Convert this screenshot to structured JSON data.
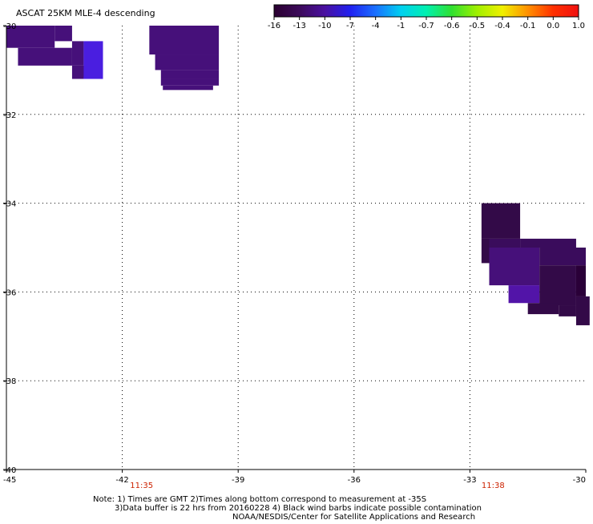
{
  "chart_data": {
    "type": "heatmap",
    "title": "ASCAT 25KM MLE-4 descending",
    "xlim": [
      -45,
      -30
    ],
    "ylim": [
      -40,
      -30
    ],
    "x_ticks": [
      -45,
      -42,
      -39,
      -36,
      -33,
      -30
    ],
    "y_ticks": [
      -30,
      -32,
      -34,
      -36,
      -38,
      -40
    ],
    "x_tick_labels": [
      "-45",
      "-42",
      "-39",
      "-36",
      "-33",
      "-30"
    ],
    "y_tick_labels": [
      "-30",
      "-32",
      "-34",
      "-36",
      "-38",
      "-40"
    ],
    "grid": true,
    "grid_style": "dotted",
    "colorbar": {
      "placement": "top-right",
      "labels": [
        "-16",
        "-13",
        "-10",
        "-7",
        "-4",
        "-1",
        "-0.7",
        "-0.6",
        "-0.5",
        "-0.4",
        "-0.1",
        "0.0",
        "1.0"
      ],
      "colors": [
        "#2a0030",
        "#3c0a5a",
        "#4a10a0",
        "#2020f0",
        "#1a70ff",
        "#00d0f0",
        "#00f0b0",
        "#30e030",
        "#a0f000",
        "#f0f000",
        "#ff9000",
        "#ff3000",
        "#f01010"
      ]
    },
    "time_labels": [
      {
        "text": "11:35",
        "lon": -41.5
      },
      {
        "text": "11:38",
        "lon": -32.4
      }
    ],
    "cells": [
      {
        "lon": [
          -45.0,
          -43.75
        ],
        "lat": [
          -30.0,
          -30.5
        ],
        "value": -12
      },
      {
        "lon": [
          -44.7,
          -43.3
        ],
        "lat": [
          -30.5,
          -30.9
        ],
        "value": -12
      },
      {
        "lon": [
          -43.75,
          -43.3
        ],
        "lat": [
          -30.0,
          -30.35
        ],
        "value": -12
      },
      {
        "lon": [
          -43.3,
          -43.0
        ],
        "lat": [
          -30.35,
          -30.9
        ],
        "value": -12
      },
      {
        "lon": [
          -43.3,
          -42.85
        ],
        "lat": [
          -30.9,
          -31.2
        ],
        "value": -12
      },
      {
        "lon": [
          -43.0,
          -42.5
        ],
        "lat": [
          -30.35,
          -31.2
        ],
        "value": -8
      },
      {
        "lon": [
          -43.0,
          -42.5
        ],
        "lat": [
          -31.2,
          -31.15
        ],
        "value": -8
      },
      {
        "lon": [
          -43.0,
          -42.5
        ],
        "lat": [
          -31.15,
          -31.2
        ],
        "value": -8
      },
      {
        "lon": [
          -43.0,
          -42.85
        ],
        "lat": [
          -31.2,
          -31.15
        ],
        "value": -8
      },
      {
        "lon": [
          -41.3,
          -39.5
        ],
        "lat": [
          -30.0,
          -30.65
        ],
        "value": -12
      },
      {
        "lon": [
          -41.15,
          -39.5
        ],
        "lat": [
          -30.65,
          -31.0
        ],
        "value": -12
      },
      {
        "lon": [
          -41.0,
          -39.5
        ],
        "lat": [
          -31.0,
          -31.2
        ],
        "value": -12
      },
      {
        "lon": [
          -41.0,
          -39.5
        ],
        "lat": [
          -31.2,
          -31.35
        ],
        "value": -12
      },
      {
        "lon": [
          -40.95,
          -39.65
        ],
        "lat": [
          -31.35,
          -31.45
        ],
        "value": -12
      },
      {
        "lon": [
          -32.7,
          -31.7
        ],
        "lat": [
          -34.0,
          -34.8
        ],
        "value": -14
      },
      {
        "lon": [
          -32.7,
          -32.5
        ],
        "lat": [
          -34.8,
          -35.35
        ],
        "value": -14
      },
      {
        "lon": [
          -32.5,
          -31.7
        ],
        "lat": [
          -34.8,
          -35.0
        ],
        "value": -13
      },
      {
        "lon": [
          -31.7,
          -30.25
        ],
        "lat": [
          -34.8,
          -35.0
        ],
        "value": -13
      },
      {
        "lon": [
          -32.5,
          -31.2
        ],
        "lat": [
          -35.0,
          -35.85
        ],
        "value": -12
      },
      {
        "lon": [
          -31.2,
          -30.0
        ],
        "lat": [
          -35.0,
          -35.4
        ],
        "value": -13
      },
      {
        "lon": [
          -32.0,
          -31.2
        ],
        "lat": [
          -35.85,
          -36.25
        ],
        "value": -11
      },
      {
        "lon": [
          -31.2,
          -30.25
        ],
        "lat": [
          -35.4,
          -36.3
        ],
        "value": -14
      },
      {
        "lon": [
          -30.25,
          -30.0
        ],
        "lat": [
          -35.4,
          -36.1
        ],
        "value": -15
      },
      {
        "lon": [
          -31.5,
          -30.7
        ],
        "lat": [
          -36.25,
          -36.5
        ],
        "value": -14
      },
      {
        "lon": [
          -30.7,
          -30.25
        ],
        "lat": [
          -36.3,
          -36.55
        ],
        "value": -14
      },
      {
        "lon": [
          -30.25,
          -29.9
        ],
        "lat": [
          -36.1,
          -36.75
        ],
        "value": -14
      }
    ],
    "note_lines": [
      "Note: 1) Times are GMT 2)Times along bottom correspond to measurement at -35S",
      "3)Data buffer is 22 hrs from 20160228 4) Black wind barbs indicate possible contamination",
      "NOAA/NESDIS/Center for Satellite Applications and Research"
    ]
  }
}
